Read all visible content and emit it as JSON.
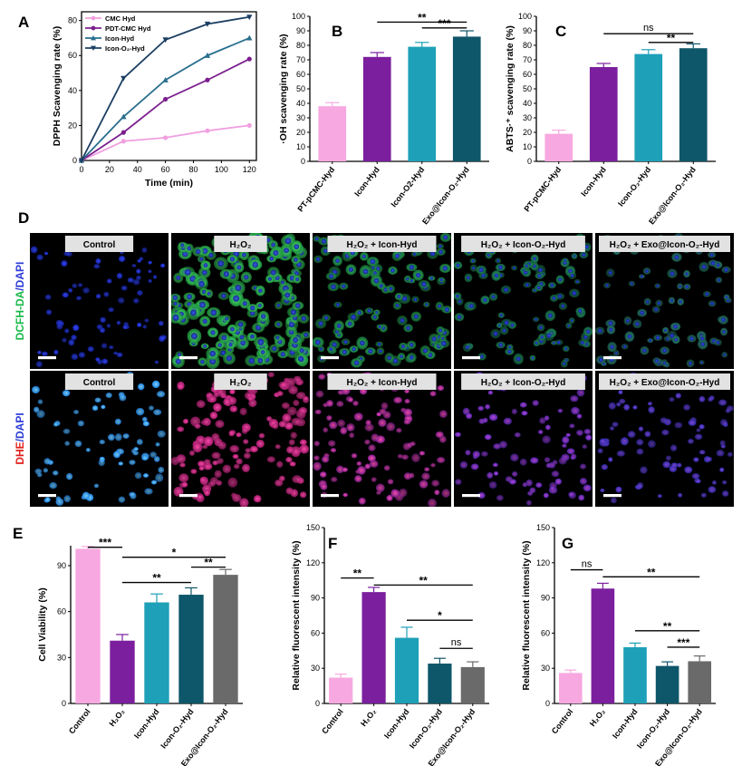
{
  "chart_data": [
    {
      "panel": "A",
      "type": "line",
      "xlabel": "Time (min)",
      "ylabel": "DPPH Scavenging rate (%)",
      "xlim": [
        0,
        125
      ],
      "ylim": [
        0,
        85
      ],
      "xticks": [
        0,
        20,
        40,
        60,
        80,
        100,
        120
      ],
      "yticks": [
        0,
        20,
        40,
        60,
        80
      ],
      "x": [
        0,
        30,
        60,
        90,
        120
      ],
      "series": [
        {
          "name": "CMC Hyd",
          "color": "#f0a0e0",
          "marker": "circle",
          "values": [
            0,
            11,
            13,
            17,
            20
          ]
        },
        {
          "name": "PDT-CMC Hyd",
          "color": "#7b1f8e",
          "marker": "circle",
          "values": [
            0,
            16,
            35,
            46,
            58
          ]
        },
        {
          "name": "Icon-Hyd",
          "color": "#2a6f8e",
          "marker": "triangle",
          "values": [
            0,
            25,
            46,
            60,
            70
          ]
        },
        {
          "name": "Icon-O₂-Hyd",
          "color": "#1c3f63",
          "marker": "triangle-down",
          "values": [
            0,
            47,
            69,
            78,
            82
          ]
        }
      ]
    },
    {
      "panel": "B",
      "type": "bar",
      "ylabel": "·OH scavenging rate (%)",
      "ylim": [
        0,
        100
      ],
      "yticks": [
        0,
        10,
        20,
        30,
        40,
        50,
        60,
        70,
        80,
        90,
        100
      ],
      "categories": [
        "PT-pCMC-Hyd",
        "Icon-Hyd",
        "Icon-O2-Hyd",
        "Exo@Icon-O₂-Hyd"
      ],
      "values": [
        38,
        72,
        79,
        86
      ],
      "errors": [
        2.5,
        3,
        3,
        4
      ],
      "colors": [
        "#f7a8e0",
        "#7b1f9e",
        "#1ea0b8",
        "#0e5669"
      ],
      "significance": [
        {
          "from": 1,
          "to": 3,
          "label": "**",
          "y": 96
        },
        {
          "from": 2,
          "to": 3,
          "label": "***",
          "y": 92
        }
      ]
    },
    {
      "panel": "C",
      "type": "bar",
      "ylabel": "ABTS·⁺ scavenging rate (%)",
      "ylim": [
        0,
        100
      ],
      "yticks": [
        0,
        10,
        20,
        30,
        40,
        50,
        60,
        70,
        80,
        90,
        100
      ],
      "categories": [
        "PT-pCMC-Hyd",
        "Icon-Hyd",
        "Icon-O₂-Hyd",
        "Exo@Icon-O₂-Hyd"
      ],
      "values": [
        19,
        65,
        74,
        78
      ],
      "errors": [
        2.5,
        2.5,
        3,
        3
      ],
      "colors": [
        "#f7a8e0",
        "#7b1f9e",
        "#1ea0b8",
        "#0e5669"
      ],
      "significance": [
        {
          "from": 1,
          "to": 3,
          "label": "ns",
          "y": 88
        },
        {
          "from": 2,
          "to": 3,
          "label": "**",
          "y": 82
        }
      ]
    },
    {
      "panel": "E",
      "type": "bar",
      "ylabel": "Cell Viability (%)",
      "ylim": [
        0,
        103
      ],
      "yticks": [
        0,
        30,
        60,
        90
      ],
      "categories": [
        "Control",
        "H₂O₂",
        "Icon-Hyd",
        "Icon-O₂-Hyd",
        "Exo@Icon-O₂-Hyd"
      ],
      "values": [
        101,
        41,
        66,
        71,
        84
      ],
      "errors": [
        1.5,
        4,
        5.5,
        4.5,
        3.5
      ],
      "colors": [
        "#f7a8e0",
        "#7b1f9e",
        "#1ea0b8",
        "#0e5669",
        "#6a6a6a"
      ],
      "significance": [
        {
          "from": 0,
          "to": 1,
          "label": "***",
          "y": 102
        },
        {
          "from": 1,
          "to": 4,
          "label": "*",
          "y": 95.5
        },
        {
          "from": 1,
          "to": 3,
          "label": "**",
          "y": 79
        },
        {
          "from": 3,
          "to": 4,
          "label": "**",
          "y": 89
        }
      ]
    },
    {
      "panel": "F",
      "type": "bar",
      "ylabel": "Relative fluorescent intensity (%)",
      "ylim": [
        0,
        150
      ],
      "yticks": [
        0,
        30,
        60,
        90,
        120,
        150
      ],
      "categories": [
        "Control",
        "H₂O₂",
        "Icon-Hyd",
        "Icon-O₂-Hyd",
        "Exo@Icon-O₂-Hyd"
      ],
      "values": [
        22,
        95,
        56,
        34,
        31
      ],
      "errors": [
        3,
        4,
        9,
        4.5,
        4.5
      ],
      "colors": [
        "#f7a8e0",
        "#7b1f9e",
        "#1ea0b8",
        "#0e5669",
        "#6a6a6a"
      ],
      "significance": [
        {
          "from": 0,
          "to": 1,
          "label": "**",
          "y": 107
        },
        {
          "from": 1,
          "to": 4,
          "label": "**",
          "y": 101
        },
        {
          "from": 2,
          "to": 4,
          "label": "*",
          "y": 71
        },
        {
          "from": 3,
          "to": 4,
          "label": "ns",
          "y": 47
        }
      ]
    },
    {
      "panel": "G",
      "type": "bar",
      "ylabel": "Relative fluorescent intensity (%)",
      "ylim": [
        0,
        150
      ],
      "yticks": [
        0,
        30,
        60,
        90,
        120,
        150
      ],
      "categories": [
        "Control",
        "H₂O₂",
        "Icon-Hyd",
        "Icon-O₂-Hyd",
        "Exo@Icon-O₂-Hyd"
      ],
      "values": [
        26,
        98,
        48,
        32,
        36
      ],
      "errors": [
        2.5,
        4.5,
        3.5,
        3.5,
        4.5
      ],
      "colors": [
        "#f7a8e0",
        "#7b1f9e",
        "#1ea0b8",
        "#0e5669",
        "#6a6a6a"
      ],
      "significance": [
        {
          "from": 0,
          "to": 1,
          "label": "ns",
          "y": 114
        },
        {
          "from": 1,
          "to": 4,
          "label": "**",
          "y": 108
        },
        {
          "from": 2,
          "to": 4,
          "label": "**",
          "y": 62
        },
        {
          "from": 3,
          "to": 4,
          "label": "***",
          "y": 48
        }
      ]
    }
  ],
  "microscopy": {
    "panel": "D",
    "rows": [
      {
        "label_parts": [
          {
            "text": "DCFH-DA",
            "color": "#19b84a"
          },
          {
            "text": "/",
            "color": "#2c3bd6"
          },
          {
            "text": "DAPI",
            "color": "#2c3bd6"
          }
        ],
        "images": [
          {
            "label": "Control",
            "stain": "nuclei-blue",
            "density": 0.35
          },
          {
            "label": "H₂O₂",
            "stain": "green-strong",
            "density": 1.0
          },
          {
            "label": "H₂O₂ + Icon-Hyd",
            "stain": "green-medium",
            "density": 0.6
          },
          {
            "label": "H₂O₂ + Icon-O₂-Hyd",
            "stain": "green-weak",
            "density": 0.45
          },
          {
            "label": "H₂O₂ + Exo@Icon-O₂-Hyd",
            "stain": "green-faint",
            "density": 0.35
          }
        ]
      },
      {
        "label_parts": [
          {
            "text": "DHE",
            "color": "#e0201a"
          },
          {
            "text": "/",
            "color": "#2c3bd6"
          },
          {
            "text": "DAPI",
            "color": "#2c3bd6"
          }
        ],
        "images": [
          {
            "label": "Control",
            "stain": "nuclei-cyan",
            "density": 0.3
          },
          {
            "label": "H₂O₂",
            "stain": "red-strong",
            "density": 0.9
          },
          {
            "label": "H₂O₂ + Icon-Hyd",
            "stain": "red-medium",
            "density": 0.6
          },
          {
            "label": "H₂O₂ + Icon-O₂-Hyd",
            "stain": "red-weak",
            "density": 0.45
          },
          {
            "label": "H₂O₂ + Exo@Icon-O₂-Hyd",
            "stain": "red-faint",
            "density": 0.35
          }
        ]
      }
    ]
  }
}
